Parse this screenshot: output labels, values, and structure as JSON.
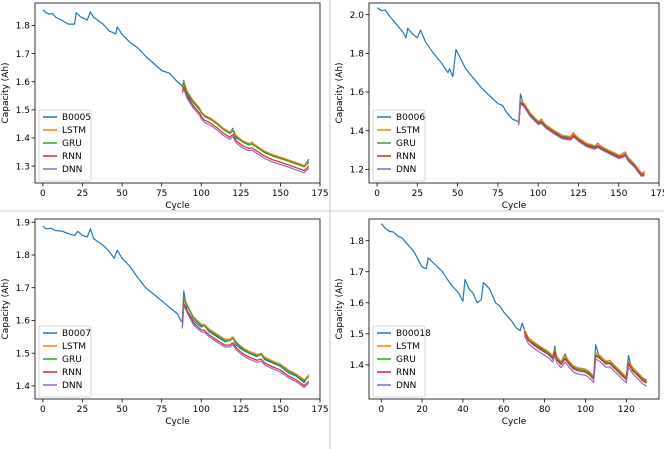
{
  "colors": {
    "B": "#1f77b4",
    "LSTM": "#ff7f0e",
    "GRU": "#2ca02c",
    "RNN": "#d62728",
    "DNN": "#9467bd"
  },
  "chart_data": [
    {
      "type": "line",
      "xlabel": "Cycle",
      "ylabel": "Capacity (Ah)",
      "xlim": [
        -5,
        175
      ],
      "ylim": [
        1.24,
        1.88
      ],
      "xticks": [
        "0",
        "25",
        "50",
        "75",
        "100",
        "125",
        "150",
        "175"
      ],
      "yticks": [
        "1.3",
        "1.4",
        "1.5",
        "1.6",
        "1.7",
        "1.8"
      ],
      "legend": "lower-left",
      "pred_start": 88,
      "series": [
        {
          "name": "B0005",
          "points": [
            [
              0,
              1.856
            ],
            [
              2,
              1.845
            ],
            [
              4,
              1.84
            ],
            [
              6,
              1.843
            ],
            [
              8,
              1.83
            ],
            [
              12,
              1.818
            ],
            [
              16,
              1.805
            ],
            [
              20,
              1.805
            ],
            [
              21,
              1.845
            ],
            [
              24,
              1.83
            ],
            [
              28,
              1.82
            ],
            [
              30,
              1.848
            ],
            [
              32,
              1.83
            ],
            [
              38,
              1.805
            ],
            [
              42,
              1.78
            ],
            [
              46,
              1.77
            ],
            [
              47,
              1.795
            ],
            [
              50,
              1.768
            ],
            [
              55,
              1.74
            ],
            [
              60,
              1.72
            ],
            [
              65,
              1.69
            ],
            [
              70,
              1.665
            ],
            [
              75,
              1.64
            ],
            [
              80,
              1.63
            ],
            [
              84,
              1.605
            ],
            [
              88,
              1.585
            ],
            [
              89,
              1.605
            ],
            [
              91,
              1.555
            ],
            [
              95,
              1.525
            ],
            [
              99,
              1.5
            ],
            [
              100,
              1.492
            ],
            [
              102,
              1.478
            ],
            [
              106,
              1.468
            ],
            [
              110,
              1.45
            ],
            [
              114,
              1.43
            ],
            [
              118,
              1.418
            ],
            [
              120,
              1.435
            ],
            [
              122,
              1.4
            ],
            [
              126,
              1.388
            ],
            [
              130,
              1.378
            ],
            [
              132,
              1.385
            ],
            [
              136,
              1.363
            ],
            [
              140,
              1.35
            ],
            [
              145,
              1.338
            ],
            [
              150,
              1.33
            ],
            [
              155,
              1.32
            ],
            [
              160,
              1.31
            ],
            [
              165,
              1.3
            ],
            [
              168,
              1.325
            ]
          ]
        },
        {
          "name": "LSTM",
          "offset": 0.0
        },
        {
          "name": "GRU",
          "offset": -0.005
        },
        {
          "name": "RNN",
          "offset": -0.018
        },
        {
          "name": "DNN",
          "offset": -0.026
        }
      ]
    },
    {
      "type": "line",
      "xlabel": "Cycle",
      "ylabel": "Capacity (Ah)",
      "xlim": [
        -5,
        175
      ],
      "ylim": [
        1.13,
        2.06
      ],
      "xticks": [
        "0",
        "25",
        "50",
        "75",
        "100",
        "125",
        "150",
        "175"
      ],
      "yticks": [
        "1.2",
        "1.4",
        "1.6",
        "1.8",
        "2.0"
      ],
      "legend": "lower-left",
      "pred_start": 88,
      "series": [
        {
          "name": "B0006",
          "points": [
            [
              0,
              2.035
            ],
            [
              3,
              2.02
            ],
            [
              5,
              2.025
            ],
            [
              8,
              1.99
            ],
            [
              12,
              1.95
            ],
            [
              16,
              1.91
            ],
            [
              18,
              1.88
            ],
            [
              19,
              1.93
            ],
            [
              22,
              1.9
            ],
            [
              25,
              1.88
            ],
            [
              27,
              1.92
            ],
            [
              30,
              1.86
            ],
            [
              35,
              1.8
            ],
            [
              40,
              1.75
            ],
            [
              44,
              1.7
            ],
            [
              45,
              1.72
            ],
            [
              47,
              1.68
            ],
            [
              49,
              1.82
            ],
            [
              52,
              1.77
            ],
            [
              55,
              1.72
            ],
            [
              60,
              1.67
            ],
            [
              65,
              1.62
            ],
            [
              70,
              1.58
            ],
            [
              75,
              1.54
            ],
            [
              78,
              1.53
            ],
            [
              80,
              1.5
            ],
            [
              84,
              1.46
            ],
            [
              87,
              1.45
            ],
            [
              88,
              1.445
            ],
            [
              89,
              1.59
            ],
            [
              91,
              1.53
            ],
            [
              95,
              1.48
            ],
            [
              100,
              1.44
            ],
            [
              102,
              1.46
            ],
            [
              105,
              1.42
            ],
            [
              110,
              1.395
            ],
            [
              115,
              1.37
            ],
            [
              120,
              1.37
            ],
            [
              122,
              1.39
            ],
            [
              125,
              1.355
            ],
            [
              130,
              1.33
            ],
            [
              135,
              1.32
            ],
            [
              137,
              1.335
            ],
            [
              140,
              1.31
            ],
            [
              145,
              1.29
            ],
            [
              150,
              1.27
            ],
            [
              152,
              1.28
            ],
            [
              154,
              1.29
            ],
            [
              156,
              1.25
            ],
            [
              160,
              1.22
            ],
            [
              164,
              1.17
            ],
            [
              166,
              1.19
            ]
          ]
        },
        {
          "name": "LSTM",
          "offset": 0.0
        },
        {
          "name": "GRU",
          "offset": -0.008
        },
        {
          "name": "RNN",
          "offset": -0.012
        },
        {
          "name": "DNN",
          "offset": -0.018
        }
      ]
    },
    {
      "type": "line",
      "xlabel": "Cycle",
      "ylabel": "Capacity (Ah)",
      "xlim": [
        -5,
        175
      ],
      "ylim": [
        1.36,
        1.91
      ],
      "xticks": [
        "0",
        "25",
        "50",
        "75",
        "100",
        "125",
        "150",
        "175"
      ],
      "yticks": [
        "1.4",
        "1.5",
        "1.6",
        "1.7",
        "1.8",
        "1.9"
      ],
      "legend": "lower-left",
      "pred_start": 88,
      "series": [
        {
          "name": "B0007",
          "points": [
            [
              0,
              1.888
            ],
            [
              2,
              1.88
            ],
            [
              5,
              1.882
            ],
            [
              8,
              1.875
            ],
            [
              12,
              1.873
            ],
            [
              16,
              1.865
            ],
            [
              20,
              1.86
            ],
            [
              22,
              1.872
            ],
            [
              25,
              1.86
            ],
            [
              28,
              1.855
            ],
            [
              30,
              1.88
            ],
            [
              32,
              1.85
            ],
            [
              38,
              1.83
            ],
            [
              42,
              1.81
            ],
            [
              45,
              1.79
            ],
            [
              47,
              1.815
            ],
            [
              50,
              1.79
            ],
            [
              55,
              1.765
            ],
            [
              60,
              1.73
            ],
            [
              65,
              1.7
            ],
            [
              70,
              1.68
            ],
            [
              75,
              1.66
            ],
            [
              80,
              1.64
            ],
            [
              85,
              1.62
            ],
            [
              87,
              1.6
            ],
            [
              88,
              1.595
            ],
            [
              89,
              1.69
            ],
            [
              91,
              1.63
            ],
            [
              95,
              1.6
            ],
            [
              100,
              1.58
            ],
            [
              102,
              1.585
            ],
            [
              105,
              1.565
            ],
            [
              110,
              1.55
            ],
            [
              115,
              1.535
            ],
            [
              118,
              1.54
            ],
            [
              120,
              1.548
            ],
            [
              122,
              1.525
            ],
            [
              126,
              1.51
            ],
            [
              130,
              1.5
            ],
            [
              135,
              1.49
            ],
            [
              138,
              1.497
            ],
            [
              140,
              1.48
            ],
            [
              145,
              1.47
            ],
            [
              150,
              1.46
            ],
            [
              155,
              1.44
            ],
            [
              160,
              1.43
            ],
            [
              165,
              1.41
            ],
            [
              168,
              1.435
            ]
          ]
        },
        {
          "name": "LSTM",
          "offset": 0.004
        },
        {
          "name": "GRU",
          "offset": 0.0
        },
        {
          "name": "RNN",
          "offset": -0.014
        },
        {
          "name": "DNN",
          "offset": -0.02
        }
      ]
    },
    {
      "type": "line",
      "xlabel": "Cycle",
      "ylabel": "Capacity (Ah)",
      "xlim": [
        -6,
        136
      ],
      "ylim": [
        1.29,
        1.87
      ],
      "xticks": [
        "0",
        "20",
        "40",
        "60",
        "80",
        "100",
        "120"
      ],
      "yticks": [
        "1.4",
        "1.5",
        "1.6",
        "1.7",
        "1.8"
      ],
      "legend": "lower-left",
      "pred_start": 70,
      "series": [
        {
          "name": "B00018",
          "points": [
            [
              0,
              1.855
            ],
            [
              2,
              1.84
            ],
            [
              4,
              1.83
            ],
            [
              6,
              1.828
            ],
            [
              8,
              1.815
            ],
            [
              10,
              1.81
            ],
            [
              12,
              1.795
            ],
            [
              14,
              1.78
            ],
            [
              16,
              1.765
            ],
            [
              18,
              1.74
            ],
            [
              20,
              1.715
            ],
            [
              22,
              1.71
            ],
            [
              23,
              1.745
            ],
            [
              26,
              1.725
            ],
            [
              30,
              1.7
            ],
            [
              34,
              1.66
            ],
            [
              38,
              1.63
            ],
            [
              40,
              1.605
            ],
            [
              41,
              1.675
            ],
            [
              43,
              1.645
            ],
            [
              45,
              1.63
            ],
            [
              47,
              1.6
            ],
            [
              49,
              1.61
            ],
            [
              50,
              1.665
            ],
            [
              53,
              1.645
            ],
            [
              56,
              1.6
            ],
            [
              58,
              1.59
            ],
            [
              60,
              1.57
            ],
            [
              62,
              1.555
            ],
            [
              64,
              1.54
            ],
            [
              66,
              1.52
            ],
            [
              68,
              1.51
            ],
            [
              69,
              1.535
            ],
            [
              70,
              1.515
            ],
            [
              72,
              1.48
            ],
            [
              75,
              1.47
            ],
            [
              78,
              1.455
            ],
            [
              80,
              1.45
            ],
            [
              82,
              1.44
            ],
            [
              84,
              1.425
            ],
            [
              85,
              1.46
            ],
            [
              86,
              1.415
            ],
            [
              88,
              1.41
            ],
            [
              90,
              1.435
            ],
            [
              92,
              1.405
            ],
            [
              94,
              1.395
            ],
            [
              96,
              1.39
            ],
            [
              100,
              1.385
            ],
            [
              102,
              1.375
            ],
            [
              104,
              1.36
            ],
            [
              105,
              1.465
            ],
            [
              107,
              1.42
            ],
            [
              110,
              1.41
            ],
            [
              112,
              1.415
            ],
            [
              114,
              1.395
            ],
            [
              116,
              1.385
            ],
            [
              118,
              1.37
            ],
            [
              120,
              1.36
            ],
            [
              121,
              1.43
            ],
            [
              123,
              1.38
            ],
            [
              126,
              1.37
            ],
            [
              128,
              1.355
            ],
            [
              130,
              1.35
            ]
          ]
        },
        {
          "name": "LSTM",
          "offset": 0.0
        },
        {
          "name": "GRU",
          "offset": -0.006
        },
        {
          "name": "RNN",
          "offset": -0.01
        },
        {
          "name": "DNN",
          "offset": -0.02
        }
      ]
    }
  ]
}
